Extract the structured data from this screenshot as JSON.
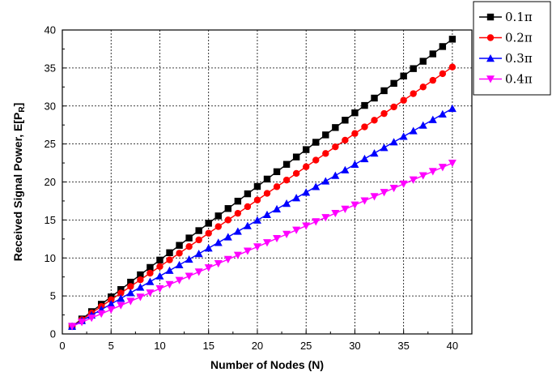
{
  "chart_data": {
    "type": "line",
    "xlabel": "Number of Nodes (N)",
    "ylabel_main": "Received Signal Power, E[P",
    "ylabel_sub": "R",
    "ylabel_end": "]",
    "xlim": [
      0,
      42
    ],
    "ylim": [
      0,
      40
    ],
    "x_ticks": [
      0,
      5,
      10,
      15,
      20,
      25,
      30,
      35,
      40
    ],
    "y_ticks": [
      0,
      5,
      10,
      15,
      20,
      25,
      30,
      35,
      40
    ],
    "grid": true,
    "grid_style": "dotted",
    "legend_position": "top-right",
    "x": [
      1,
      2,
      3,
      4,
      5,
      6,
      7,
      8,
      9,
      10,
      11,
      12,
      13,
      14,
      15,
      16,
      17,
      18,
      19,
      20,
      21,
      22,
      23,
      24,
      25,
      26,
      27,
      28,
      29,
      30,
      31,
      32,
      33,
      34,
      35,
      36,
      37,
      38,
      39,
      40
    ],
    "series": [
      {
        "name": "0.1π",
        "color": "#000000",
        "marker": "square",
        "slope": 0.969
      },
      {
        "name": "0.2π",
        "color": "#ff0000",
        "marker": "circle",
        "slope": 0.875
      },
      {
        "name": "0.3π",
        "color": "#0000ff",
        "marker": "triangle-up",
        "slope": 0.735
      },
      {
        "name": "0.4π",
        "color": "#ff00ff",
        "marker": "triangle-down",
        "slope": 0.551
      }
    ]
  }
}
